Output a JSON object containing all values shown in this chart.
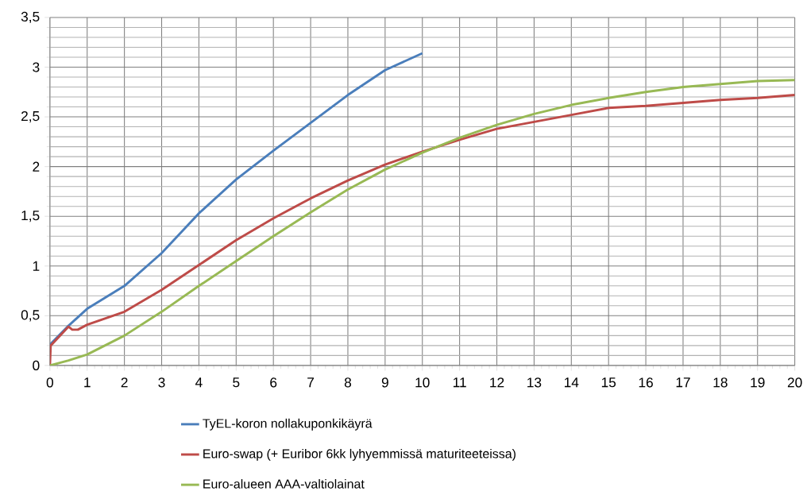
{
  "chart_data": {
    "type": "line",
    "xlim": [
      0,
      20
    ],
    "xticks": [
      0,
      1,
      2,
      3,
      4,
      5,
      6,
      7,
      8,
      9,
      10,
      11,
      12,
      13,
      14,
      15,
      16,
      17,
      18,
      19,
      20
    ],
    "ylim": [
      0,
      3.5
    ],
    "yticks": [
      0,
      {
        "value": 0.5,
        "label": "0,5"
      },
      1,
      {
        "value": 1.5,
        "label": "1,5"
      },
      2,
      {
        "value": 2.5,
        "label": "2,5"
      },
      3,
      {
        "value": 3.5,
        "label": "3,5"
      }
    ],
    "grid": true,
    "legend": "bottom",
    "marker": "none",
    "line_style": "solid",
    "series": [
      {
        "name": "TyEL-koron nollakuponkikäyrä",
        "color": "#4a7ebb",
        "x": [
          0,
          0.5,
          1,
          2,
          3,
          4,
          5,
          6,
          7,
          8,
          9,
          10
        ],
        "values": [
          0.21,
          0.4,
          0.57,
          0.8,
          1.13,
          1.53,
          1.87,
          2.16,
          2.44,
          2.72,
          2.97,
          3.14
        ]
      },
      {
        "name": "Euro-swap (+ Euribor 6kk lyhyemmissä maturiteeteissa)",
        "color": "#be4b48",
        "x": [
          0,
          0.02,
          0.5,
          0.6,
          0.75,
          1,
          2,
          3,
          4,
          5,
          6,
          7,
          8,
          9,
          10,
          11,
          12,
          13,
          14,
          15,
          16,
          17,
          18,
          19,
          20
        ],
        "values": [
          0,
          0.2,
          0.39,
          0.36,
          0.36,
          0.41,
          0.54,
          0.76,
          1.01,
          1.26,
          1.48,
          1.68,
          1.86,
          2.02,
          2.15,
          2.27,
          2.38,
          2.45,
          2.52,
          2.59,
          2.61,
          2.64,
          2.67,
          2.69,
          2.72
        ]
      },
      {
        "name": "Euro-alueen AAA-valtiolainat",
        "color": "#98b954",
        "x": [
          0,
          0.5,
          1,
          2,
          3,
          4,
          5,
          6,
          7,
          8,
          9,
          10,
          11,
          12,
          13,
          14,
          15,
          16,
          17,
          18,
          19,
          20
        ],
        "values": [
          0,
          0.05,
          0.11,
          0.3,
          0.54,
          0.8,
          1.05,
          1.3,
          1.54,
          1.77,
          1.97,
          2.14,
          2.29,
          2.42,
          2.53,
          2.62,
          2.69,
          2.75,
          2.8,
          2.83,
          2.86,
          2.87
        ]
      }
    ]
  }
}
